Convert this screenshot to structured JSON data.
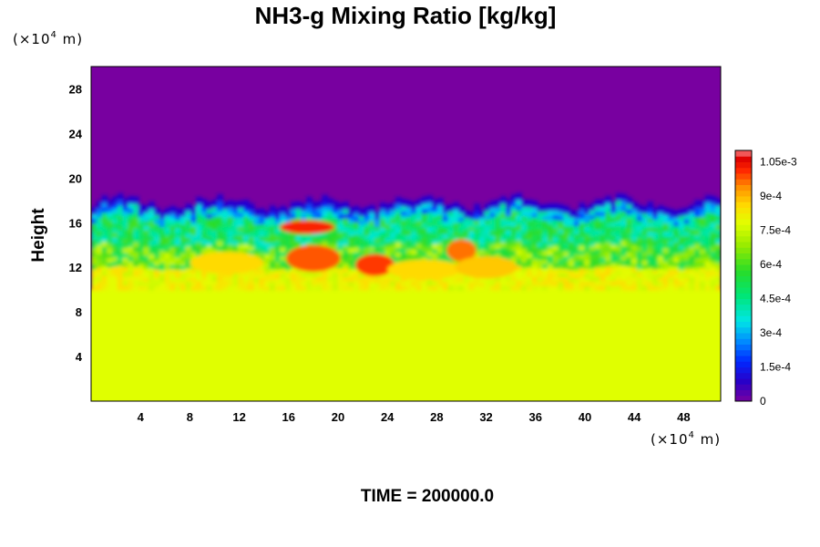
{
  "chart_data": {
    "type": "heatmap",
    "title": "NH3-g Mixing Ratio [kg/kg]",
    "ylabel": "Height",
    "x_unit_prefix": "(×10",
    "x_unit_exp": "4",
    "x_unit_suffix": " m)",
    "y_unit_prefix": "(×10",
    "y_unit_exp": "4",
    "y_unit_suffix": " m)",
    "xlim": [
      0,
      51
    ],
    "ylim": [
      0,
      30
    ],
    "x_ticks": [
      "4",
      "8",
      "12",
      "16",
      "20",
      "24",
      "28",
      "32",
      "36",
      "40",
      "44",
      "48"
    ],
    "x_tick_values": [
      4,
      8,
      12,
      16,
      20,
      24,
      28,
      32,
      36,
      40,
      44,
      48
    ],
    "y_ticks": [
      "4",
      "8",
      "12",
      "16",
      "20",
      "24",
      "28"
    ],
    "y_tick_values": [
      4,
      8,
      12,
      16,
      20,
      24,
      28
    ],
    "colorbar": {
      "min": 0,
      "max": 0.0011,
      "labels": [
        "0",
        "1.5e-4",
        "3e-4",
        "4.5e-4",
        "6e-4",
        "7.5e-4",
        "9e-4",
        "1.05e-3"
      ],
      "label_values": [
        0,
        0.00015,
        0.0003,
        0.00045,
        0.0006,
        0.00075,
        0.0009,
        0.00105
      ]
    },
    "field_summary": {
      "upper_layer_value": 0,
      "lower_layer_value": 0.00078,
      "upper_layer_base_height": 18
    },
    "time_label": "TIME = 200000.0",
    "colors": {
      "low": "#7800a0",
      "high": "#ff8080"
    }
  }
}
